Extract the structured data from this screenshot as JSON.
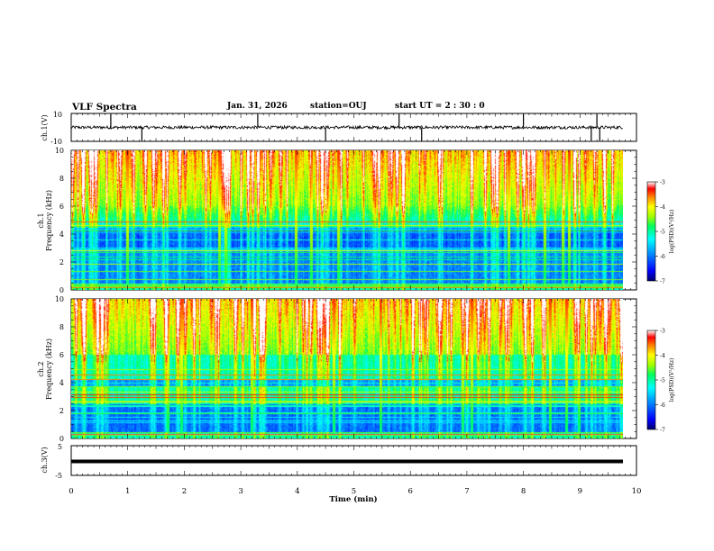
{
  "header": {
    "title": "VLF Spectra",
    "date": "Jan. 31, 2026",
    "station": "station=OUJ",
    "start_ut": "start UT =  2 : 30 : 0"
  },
  "chart_data": [
    {
      "type": "line",
      "panel": "ch.1 waveform",
      "ylabel": "ch.1(V)",
      "ylim": [
        -10,
        10
      ],
      "ytick_labels": [
        "10",
        "-10"
      ],
      "xlim": [
        0,
        10
      ],
      "baseline": 0,
      "spikes_min": [
        0.7,
        1.25,
        3.3,
        4.5,
        5.8,
        6.2,
        8.0,
        9.2,
        9.3,
        9.35
      ]
    },
    {
      "type": "heatmap",
      "panel": "ch.1 spectrogram",
      "ylabel": "ch.1\nFrequency (kHz)",
      "ylim": [
        0,
        10
      ],
      "ytick_labels": [
        "0",
        "2",
        "4",
        "6",
        "8",
        "10"
      ],
      "xlim": [
        0,
        10
      ],
      "colorbar": {
        "label": "log(PSD)(V²/Hz)",
        "range": [
          -7,
          -3
        ],
        "tick_labels": [
          "-3",
          "-4",
          "-5",
          "-6",
          "-7"
        ]
      }
    },
    {
      "type": "heatmap",
      "panel": "ch.2 spectrogram",
      "ylabel": "ch.2\nFrequency (kHz)",
      "ylim": [
        0,
        10
      ],
      "ytick_labels": [
        "0",
        "2",
        "4",
        "6",
        "8",
        "10"
      ],
      "xlim": [
        0,
        10
      ],
      "colorbar": {
        "label": "log(PSD)(V²/Hz)",
        "range": [
          -7,
          -3
        ],
        "tick_labels": [
          "-3",
          "-4",
          "-5",
          "-6",
          "-7"
        ]
      }
    },
    {
      "type": "line",
      "panel": "ch.3 waveform",
      "ylabel": "ch.3(V)",
      "ylim": [
        -5,
        5
      ],
      "ytick_labels": [
        "5",
        "-5"
      ],
      "xlim": [
        0,
        10
      ],
      "value": -0.3
    }
  ],
  "xaxis": {
    "label": "Time (min)",
    "ticks": [
      0,
      1,
      2,
      3,
      4,
      5,
      6,
      7,
      8,
      9,
      10
    ],
    "tick_labels": [
      "0",
      "1",
      "2",
      "3",
      "4",
      "5",
      "6",
      "7",
      "8",
      "9",
      "10"
    ]
  },
  "colors": {
    "colormap": [
      "#00006a",
      "#0000ff",
      "#00a0ff",
      "#00ffff",
      "#00ff60",
      "#a0ff00",
      "#ffff00",
      "#ff8000",
      "#ff0000",
      "#ffffff"
    ]
  }
}
